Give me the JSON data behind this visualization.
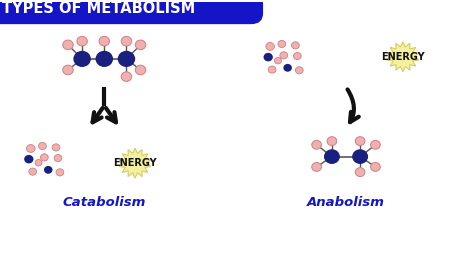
{
  "title": "TYPES OF METABOLISM",
  "title_bg_color": "#1515c8",
  "title_text_color": "#ffffff",
  "bg_color": "#ffffff",
  "label_catabolism": "Catabolism",
  "label_anabolism": "Anabolism",
  "label_color": "#1515c8",
  "energy_text": "ENERGY",
  "energy_bg": "#f5f0a0",
  "energy_border": "#d4cc60",
  "node_large_color": "#1a2080",
  "node_small_color": "#f0b0b0",
  "node_small_edge": "#d08080",
  "arrow_color": "#111111",
  "line_color": "#555555"
}
